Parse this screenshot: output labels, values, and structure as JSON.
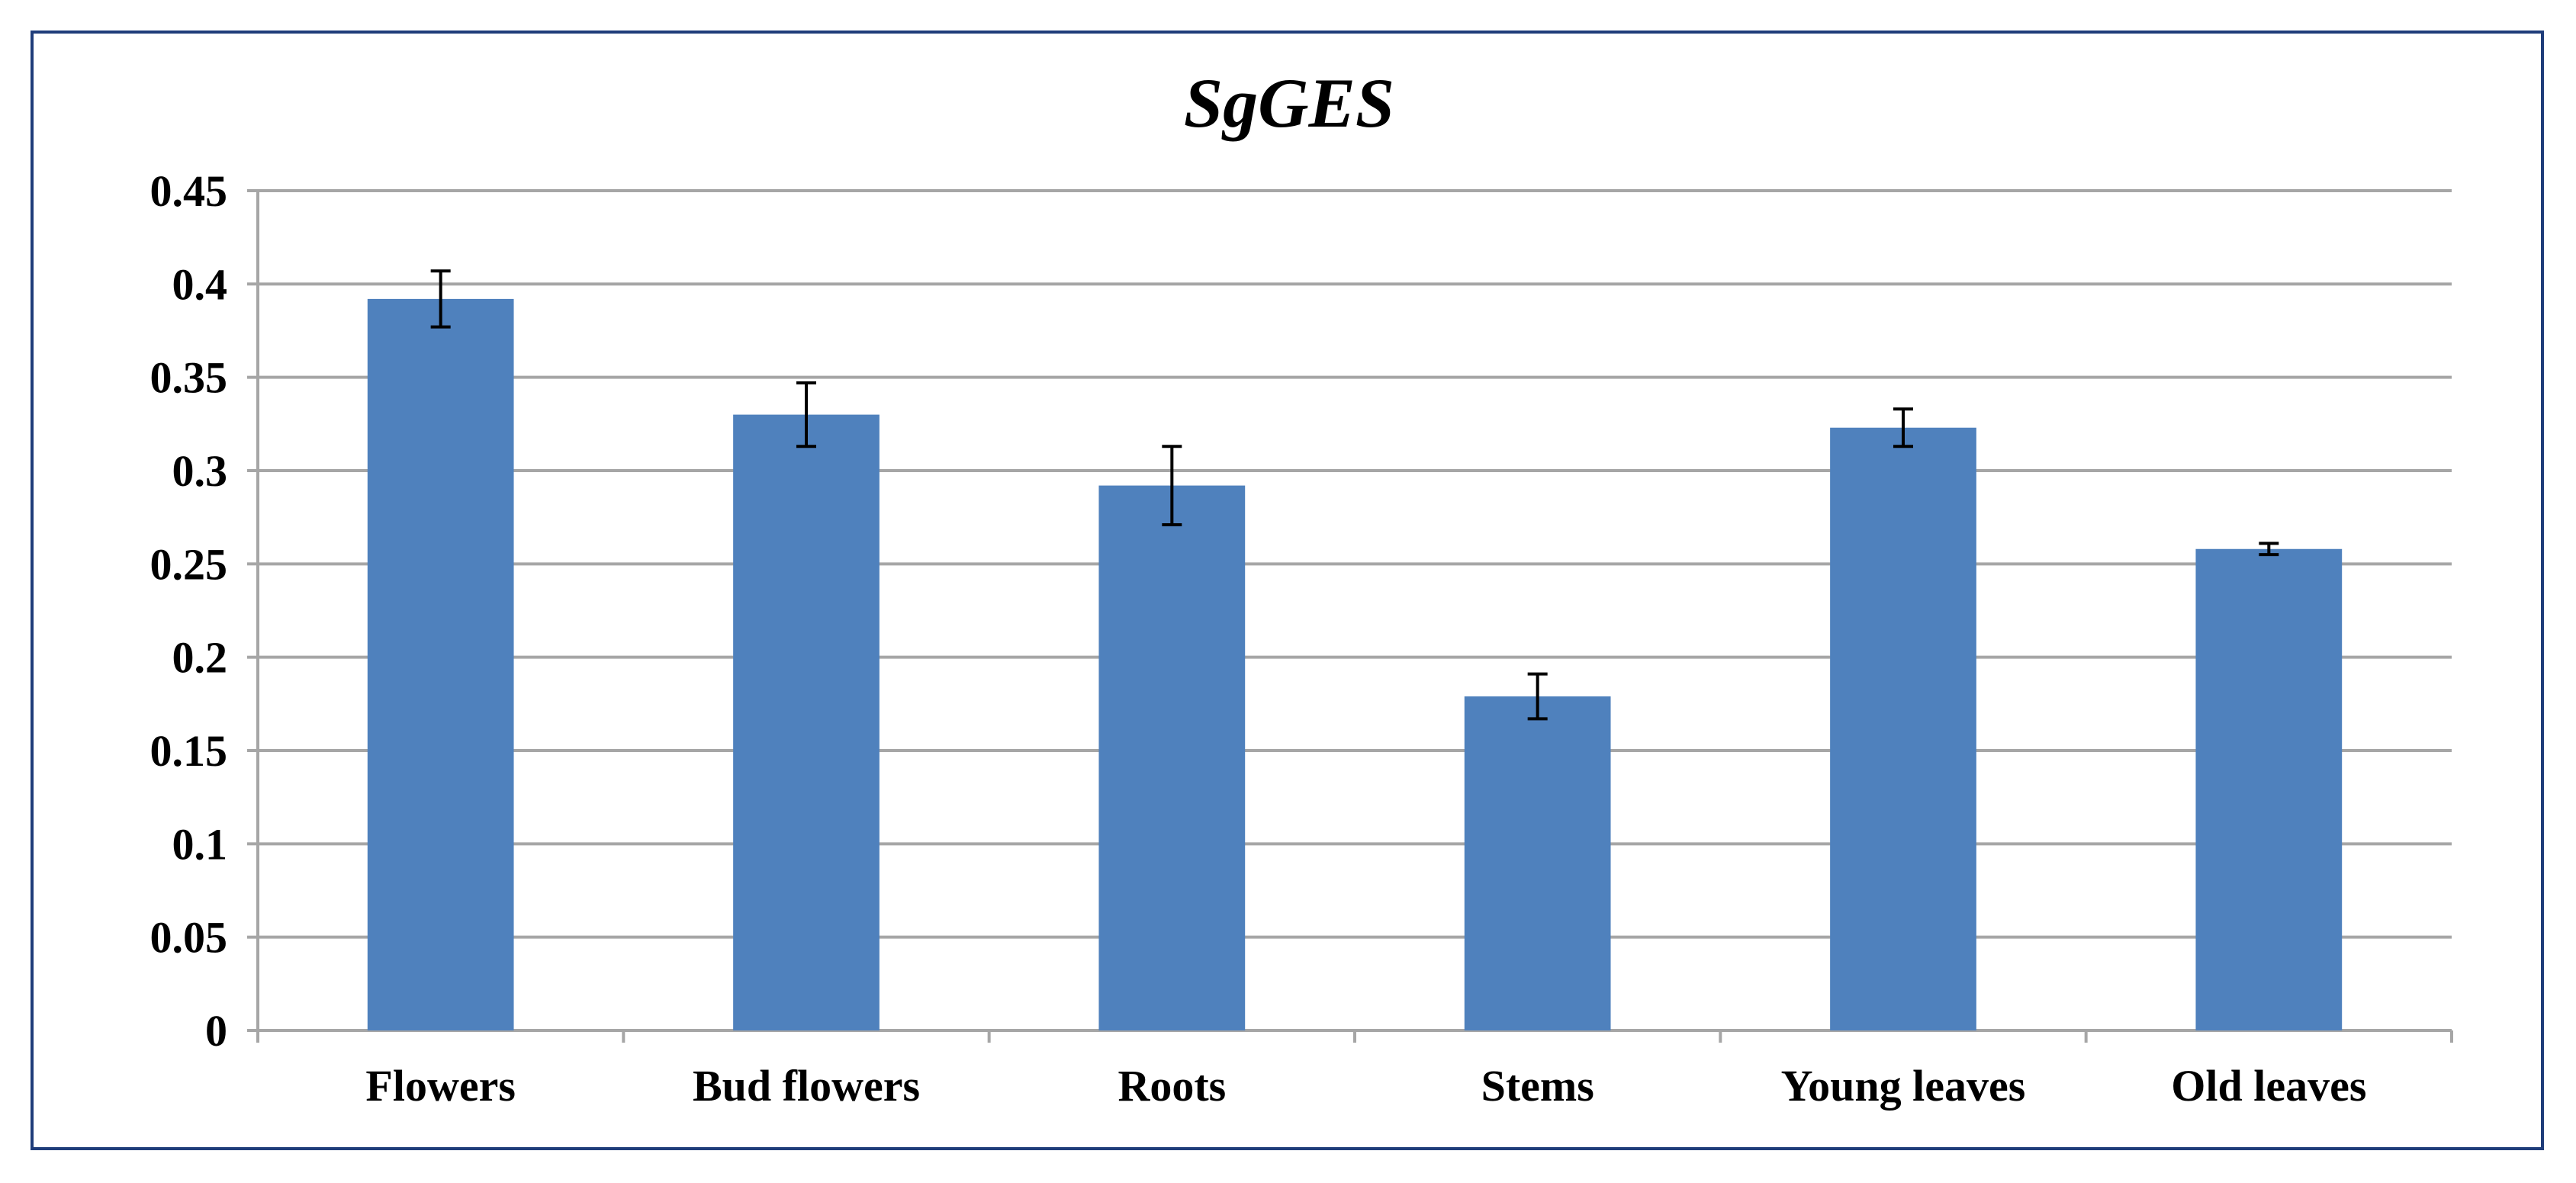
{
  "chart_data": {
    "type": "bar",
    "title": "SgGES",
    "xlabel": "",
    "ylabel": "",
    "categories": [
      "Flowers",
      "Bud flowers",
      "Roots",
      "Stems",
      "Young leaves",
      "Old leaves"
    ],
    "series": [
      {
        "name": "SgGES",
        "values": [
          0.392,
          0.33,
          0.292,
          0.179,
          0.323,
          0.258
        ],
        "errors": [
          0.015,
          0.017,
          0.021,
          0.012,
          0.01,
          0.003
        ]
      }
    ],
    "ylim": [
      0,
      0.45
    ],
    "yticks": [
      0,
      0.05,
      0.1,
      0.15,
      0.2,
      0.25,
      0.3,
      0.35,
      0.4,
      0.45
    ],
    "ytick_labels": [
      "0",
      "0.05",
      "0.1",
      "0.15",
      "0.2",
      "0.25",
      "0.3",
      "0.35",
      "0.4",
      "0.45"
    ],
    "grid": true,
    "legend": "none"
  },
  "colors": {
    "bar": "#4f81bd",
    "grid": "#a6a6a6",
    "axis": "#a6a6a6",
    "error_bar": "#000000",
    "frame": "#1f3d7a"
  }
}
